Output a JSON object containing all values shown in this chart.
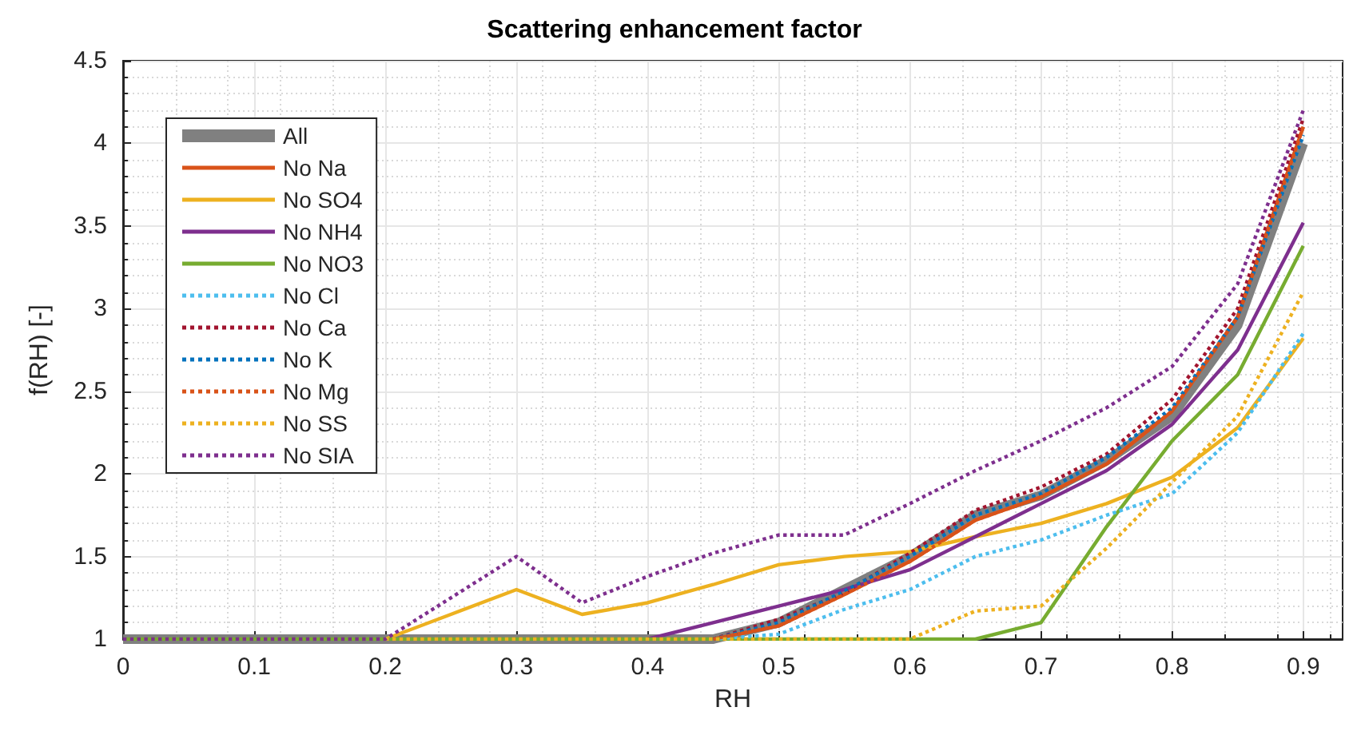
{
  "chart_data": {
    "type": "line",
    "title": "Scattering enhancement factor",
    "xlabel": "RH",
    "ylabel": "f(RH) [-]",
    "x": [
      0,
      0.05,
      0.1,
      0.15,
      0.2,
      0.25,
      0.3,
      0.35,
      0.4,
      0.45,
      0.5,
      0.55,
      0.6,
      0.65,
      0.7,
      0.75,
      0.8,
      0.85,
      0.9
    ],
    "series": [
      {
        "name": "All",
        "color": "#808080",
        "line_style": "solid",
        "values": [
          1,
          1,
          1,
          1,
          1,
          1,
          1,
          1,
          1,
          1,
          1.1,
          1.3,
          1.5,
          1.75,
          1.87,
          2.08,
          2.35,
          2.9,
          4.0
        ]
      },
      {
        "name": "No Na",
        "color": "#d95319",
        "line_style": "solid",
        "values": [
          null,
          null,
          null,
          null,
          null,
          null,
          null,
          null,
          null,
          1,
          1.08,
          1.27,
          1.47,
          1.72,
          1.86,
          2.06,
          2.38,
          2.95,
          4.1
        ]
      },
      {
        "name": "No SO4",
        "color": "#edb120",
        "line_style": "solid",
        "values": [
          null,
          null,
          null,
          null,
          1,
          1.15,
          1.3,
          1.15,
          1.22,
          1.33,
          1.45,
          1.5,
          1.53,
          1.62,
          1.7,
          1.82,
          1.98,
          2.28,
          2.82
        ]
      },
      {
        "name": "No NH4",
        "color": "#7e2f8e",
        "line_style": "solid",
        "values": [
          null,
          null,
          null,
          null,
          null,
          null,
          null,
          null,
          1,
          1.1,
          1.2,
          1.3,
          1.42,
          1.62,
          1.82,
          2.02,
          2.3,
          2.75,
          3.52
        ]
      },
      {
        "name": "No NO3",
        "color": "#77ac30",
        "line_style": "solid",
        "values": [
          1,
          1,
          1,
          1,
          1,
          1,
          1,
          1,
          1,
          1,
          1,
          1,
          1,
          1,
          1.1,
          1.68,
          2.2,
          2.6,
          3.38
        ]
      },
      {
        "name": "No Cl",
        "color": "#4dbeee",
        "line_style": "dotted",
        "values": [
          null,
          null,
          null,
          null,
          null,
          null,
          null,
          null,
          null,
          1,
          1.03,
          1.18,
          1.3,
          1.5,
          1.6,
          1.75,
          1.88,
          2.25,
          2.85
        ]
      },
      {
        "name": "No Ca",
        "color": "#a2142f",
        "line_style": "dotted",
        "values": [
          null,
          null,
          null,
          null,
          null,
          null,
          null,
          null,
          null,
          1,
          1.12,
          1.28,
          1.52,
          1.78,
          1.92,
          2.12,
          2.45,
          3.0,
          4.15
        ]
      },
      {
        "name": "No K",
        "color": "#0072bd",
        "line_style": "dotted",
        "values": [
          null,
          null,
          null,
          null,
          null,
          null,
          null,
          null,
          null,
          1,
          1.1,
          1.29,
          1.5,
          1.75,
          1.88,
          2.1,
          2.4,
          2.95,
          4.05
        ]
      },
      {
        "name": "No Mg",
        "color": "#d95319",
        "line_style": "dotted",
        "values": [
          null,
          null,
          null,
          null,
          null,
          null,
          null,
          null,
          null,
          1,
          1.08,
          1.27,
          1.47,
          1.72,
          1.86,
          2.06,
          2.38,
          2.95,
          4.1
        ]
      },
      {
        "name": "No SS",
        "color": "#edb120",
        "line_style": "dotted",
        "values": [
          null,
          null,
          null,
          null,
          1,
          1,
          1,
          1,
          1,
          1,
          1,
          1,
          1,
          1.17,
          1.2,
          1.55,
          1.95,
          2.35,
          3.1
        ]
      },
      {
        "name": "No SIA",
        "color": "#7e2f8e",
        "line_style": "dotted",
        "values": [
          1,
          1,
          1,
          1,
          1,
          1.25,
          1.5,
          1.22,
          1.38,
          1.52,
          1.63,
          1.63,
          1.82,
          2.02,
          2.2,
          2.4,
          2.65,
          3.15,
          4.2
        ]
      }
    ],
    "xlim": [
      0,
      0.93
    ],
    "xticks": [
      0,
      0.1,
      0.2,
      0.3,
      0.4,
      0.5,
      0.6,
      0.7,
      0.8,
      0.9
    ],
    "ylim": [
      1,
      4.5
    ],
    "yticks": [
      1,
      1.5,
      2,
      2.5,
      3,
      3.5,
      4,
      4.5
    ],
    "grid": true,
    "legend": "top left",
    "marker": "none"
  }
}
